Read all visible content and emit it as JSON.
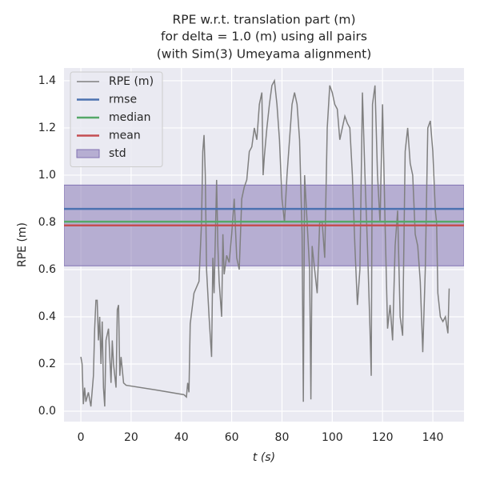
{
  "chart_data": {
    "type": "line",
    "title": [
      "RPE w.r.t. translation part (m)",
      "for delta = 1.0 (m) using all pairs",
      "(with Sim(3) Umeyama alignment)"
    ],
    "xlabel": "t (s)",
    "ylabel": "RPE (m)",
    "x": [
      0,
      0.5,
      1,
      1.5,
      2,
      3,
      4,
      5,
      5.5,
      6,
      6.5,
      7,
      7.5,
      8,
      8.5,
      9,
      9.5,
      10,
      11,
      12,
      12.5,
      13,
      14,
      14.5,
      15,
      15.5,
      16,
      17,
      18,
      30,
      41,
      42,
      42.5,
      43,
      43.5,
      45,
      47,
      48,
      48.5,
      49,
      49.5,
      50,
      51,
      52,
      52.5,
      53,
      54,
      54.5,
      55,
      56,
      56.5,
      57,
      58,
      59,
      60,
      61,
      62,
      63,
      64,
      65,
      66,
      67,
      68,
      69,
      70,
      71,
      72,
      72.5,
      73,
      74,
      75,
      76,
      77,
      78,
      79,
      80,
      81,
      82,
      83,
      84,
      85,
      86,
      87,
      88,
      88.5,
      89,
      90,
      91,
      91.5,
      92,
      93,
      94,
      95,
      96,
      97,
      98,
      99,
      100,
      101,
      102,
      103,
      104,
      105,
      106,
      107,
      108,
      109,
      110,
      111,
      112,
      113,
      114,
      115,
      115.5,
      116,
      117,
      118,
      119,
      120,
      121,
      122,
      123,
      124,
      125,
      126,
      127,
      128,
      129,
      130,
      131,
      132,
      133,
      134,
      135,
      136,
      137,
      138,
      139,
      140,
      141,
      141.5,
      142,
      143,
      144,
      145,
      146,
      146.5
    ],
    "series": [
      {
        "name": "RPE (m)",
        "color": "#808080",
        "values": [
          0.23,
          0.2,
          0.03,
          0.1,
          0.04,
          0.08,
          0.02,
          0.15,
          0.35,
          0.47,
          0.47,
          0.3,
          0.4,
          0.2,
          0.38,
          0.1,
          0.02,
          0.3,
          0.35,
          0.12,
          0.3,
          0.2,
          0.1,
          0.43,
          0.45,
          0.15,
          0.23,
          0.12,
          0.11,
          0.09,
          0.07,
          0.06,
          0.12,
          0.08,
          0.37,
          0.5,
          0.55,
          0.8,
          1.1,
          1.17,
          1.0,
          0.6,
          0.4,
          0.23,
          0.65,
          0.5,
          0.98,
          0.7,
          0.55,
          0.4,
          0.75,
          0.58,
          0.66,
          0.63,
          0.75,
          0.9,
          0.65,
          0.6,
          0.9,
          0.95,
          0.98,
          1.1,
          1.12,
          1.2,
          1.15,
          1.3,
          1.35,
          1.0,
          1.08,
          1.2,
          1.3,
          1.38,
          1.4,
          1.3,
          1.15,
          0.9,
          0.8,
          1.0,
          1.15,
          1.3,
          1.35,
          1.3,
          1.15,
          0.75,
          0.04,
          1.0,
          0.8,
          0.6,
          0.05,
          0.7,
          0.6,
          0.5,
          0.8,
          0.8,
          0.65,
          1.2,
          1.38,
          1.35,
          1.3,
          1.28,
          1.15,
          1.2,
          1.25,
          1.22,
          1.2,
          1.0,
          0.7,
          0.45,
          0.6,
          1.35,
          1.0,
          0.7,
          0.35,
          0.15,
          1.3,
          1.38,
          1.0,
          0.8,
          1.3,
          0.8,
          0.35,
          0.45,
          0.3,
          0.7,
          0.85,
          0.4,
          0.32,
          1.1,
          1.2,
          1.05,
          1.0,
          0.75,
          0.7,
          0.55,
          0.25,
          0.6,
          1.2,
          1.23,
          1.1,
          0.85,
          0.8,
          0.5,
          0.4,
          0.38,
          0.4,
          0.33,
          0.52
        ]
      }
    ],
    "stats": [
      {
        "name": "rmse",
        "color": "#4c72b0",
        "value": 0.857
      },
      {
        "name": "median",
        "color": "#55a868",
        "value": 0.803
      },
      {
        "name": "mean",
        "color": "#c44e52",
        "value": 0.787
      }
    ],
    "std": {
      "name": "std",
      "color": "#8172b2",
      "value": 0.171
    },
    "xlim": [
      -6.7,
      152.4
    ],
    "ylim": [
      -0.044,
      1.454
    ],
    "xticks": [
      0,
      20,
      40,
      60,
      80,
      100,
      120,
      140
    ],
    "yticks": [
      {
        "value": 0,
        "label": "0.0"
      },
      {
        "value": 0.2,
        "label": "0.2"
      },
      {
        "value": 0.4,
        "label": "0.4"
      },
      {
        "value": 0.6,
        "label": "0.6"
      },
      {
        "value": 0.8,
        "label": "0.8"
      },
      {
        "value": 1.0,
        "label": "1.0"
      },
      {
        "value": 1.2,
        "label": "1.2"
      },
      {
        "value": 1.4,
        "label": "1.4"
      }
    ],
    "grid": true,
    "legend": "upper left"
  }
}
